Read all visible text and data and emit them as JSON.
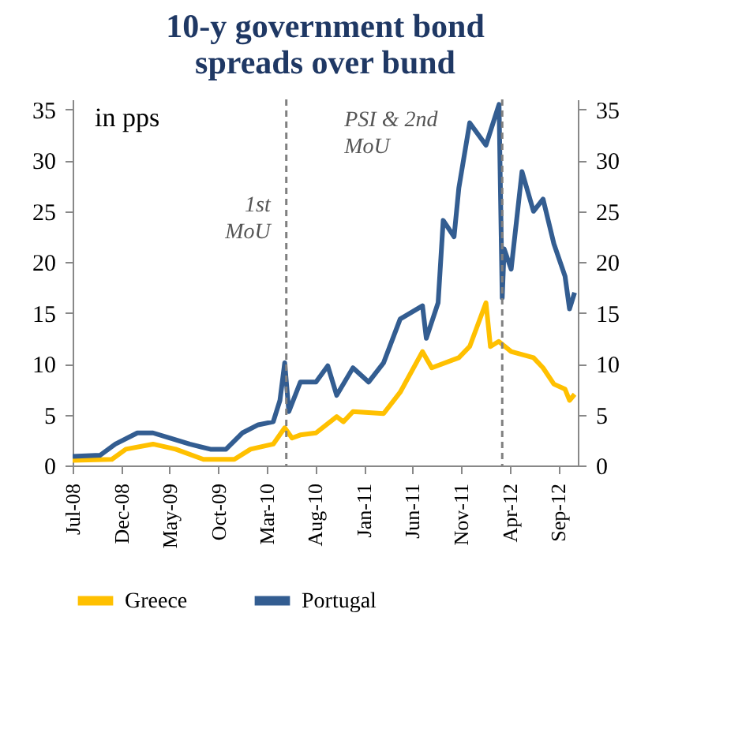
{
  "chart_data": {
    "type": "line",
    "title": "10-y  government bond spreads over bund",
    "annotations": [
      "in pps"
    ],
    "xlim": [
      "2008-07-01",
      "2012-11-01"
    ],
    "xticks": [
      {
        "value": "2008-07-01",
        "label": "Jul-08"
      },
      {
        "value": "2008-12-01",
        "label": "Dec-08"
      },
      {
        "value": "2009-05-01",
        "label": "May-09"
      },
      {
        "value": "2009-10-01",
        "label": "Oct-09"
      },
      {
        "value": "2010-03-01",
        "label": "Mar-10"
      },
      {
        "value": "2010-08-01",
        "label": "Aug-10"
      },
      {
        "value": "2011-01-01",
        "label": "Jan-11"
      },
      {
        "value": "2011-06-01",
        "label": "Jun-11"
      },
      {
        "value": "2011-11-01",
        "label": "Nov-11"
      },
      {
        "value": "2012-04-01",
        "label": "Apr-12"
      },
      {
        "value": "2012-09-01",
        "label": "Sep-12"
      }
    ],
    "ylim": [
      0,
      36
    ],
    "yticks": [
      0,
      5,
      10,
      15,
      20,
      25,
      30,
      35
    ],
    "y2lim": [
      0,
      36
    ],
    "y2ticks": [
      0,
      5,
      10,
      15,
      20,
      25,
      30,
      35
    ],
    "grid": false,
    "legend": "bottom",
    "marker": "none",
    "line_style": "solid",
    "ref_lines": [
      {
        "axis": "x",
        "value": "2010-05-02",
        "label": "1st MoU",
        "color": "#808080",
        "line_style": "dashed"
      },
      {
        "axis": "x",
        "value": "2012-03-09",
        "label": "PSI & 2nd MoU",
        "color": "#808080",
        "line_style": "dashed"
      }
    ],
    "series": [
      {
        "name": "Greece",
        "color": "#ffc000",
        "x": [
          "2008-07-01",
          "2008-11-01",
          "2008-12-15",
          "2009-03-10",
          "2009-05-20",
          "2009-08-15",
          "2009-11-20",
          "2010-01-10",
          "2010-03-22",
          "2010-04-27",
          "2010-05-20",
          "2010-06-15",
          "2010-08-03",
          "2010-10-07",
          "2010-10-28",
          "2010-11-27",
          "2011-01-15",
          "2011-03-03",
          "2011-04-24",
          "2011-07-03",
          "2011-08-01",
          "2011-10-25",
          "2011-11-28",
          "2012-01-18",
          "2012-02-01",
          "2012-02-27",
          "2012-04-06",
          "2012-06-15",
          "2012-07-15",
          "2012-08-18",
          "2012-09-22",
          "2012-10-06",
          "2012-10-22"
        ],
        "values": [
          0.5,
          0.6,
          1.6,
          2.1,
          1.6,
          0.6,
          0.6,
          1.6,
          2.1,
          3.7,
          2.7,
          3.0,
          3.2,
          4.8,
          4.3,
          5.3,
          5.2,
          5.1,
          7.2,
          11.2,
          9.6,
          10.6,
          11.7,
          16.0,
          11.7,
          12.2,
          11.2,
          10.6,
          9.6,
          8.0,
          7.5,
          6.4,
          7.0
        ]
      },
      {
        "name": "Portugal",
        "color": "#335d91",
        "x": [
          "2008-07-01",
          "2008-09-25",
          "2008-11-12",
          "2009-01-20",
          "2009-03-10",
          "2009-05-01",
          "2009-07-03",
          "2009-09-06",
          "2009-10-25",
          "2009-12-15",
          "2010-02-03",
          "2010-03-22",
          "2010-04-12",
          "2010-04-27",
          "2010-05-10",
          "2010-06-15",
          "2010-08-03",
          "2010-09-09",
          "2010-10-07",
          "2010-11-27",
          "2011-01-15",
          "2011-03-03",
          "2011-04-24",
          "2011-07-03",
          "2011-07-15",
          "2011-08-21",
          "2011-09-06",
          "2011-10-10",
          "2011-10-25",
          "2011-11-28",
          "2012-01-18",
          "2012-02-28",
          "2012-03-09",
          "2012-03-15",
          "2012-04-06",
          "2012-05-10",
          "2012-06-15",
          "2012-07-15",
          "2012-08-18",
          "2012-09-22",
          "2012-10-06",
          "2012-10-22"
        ],
        "values": [
          0.9,
          1.0,
          2.1,
          3.2,
          3.2,
          2.7,
          2.1,
          1.6,
          1.6,
          3.2,
          4.0,
          4.3,
          6.4,
          10.1,
          5.3,
          8.2,
          8.2,
          9.8,
          6.9,
          9.6,
          8.2,
          10.1,
          14.4,
          15.7,
          12.5,
          16.0,
          24.1,
          22.5,
          27.3,
          33.7,
          31.5,
          35.5,
          16.5,
          21.3,
          19.3,
          28.9,
          25.0,
          26.2,
          21.8,
          18.6,
          15.4,
          17.0
        ]
      }
    ]
  }
}
